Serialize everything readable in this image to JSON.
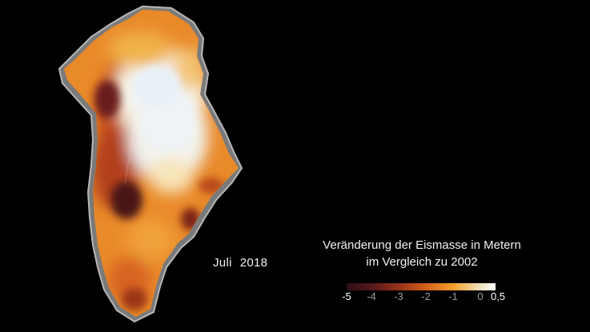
{
  "map": {
    "region": "Greenland",
    "date": {
      "month": "Juli",
      "year": "2018"
    }
  },
  "legend": {
    "title_line1": "Veränderung der Eismasse in Metern",
    "title_line2": "im Vergleich zu 2002",
    "ticks": [
      "-5",
      "-4",
      "-3",
      "-2",
      "-1",
      "0",
      "0,5"
    ],
    "min": -5,
    "max": 0.5,
    "colors": {
      "c_-5": "#2a0f14",
      "c_-4": "#5a1a1c",
      "c_-3": "#9a3418",
      "c_-2": "#d8621a",
      "c_-1": "#f4a532",
      "c_0": "#f4e6c8",
      "c_0.5": "#ffffff"
    }
  },
  "colors": {
    "background": "#000000",
    "coast": "#8c8c8c",
    "ice_high": "#eef3f6"
  }
}
